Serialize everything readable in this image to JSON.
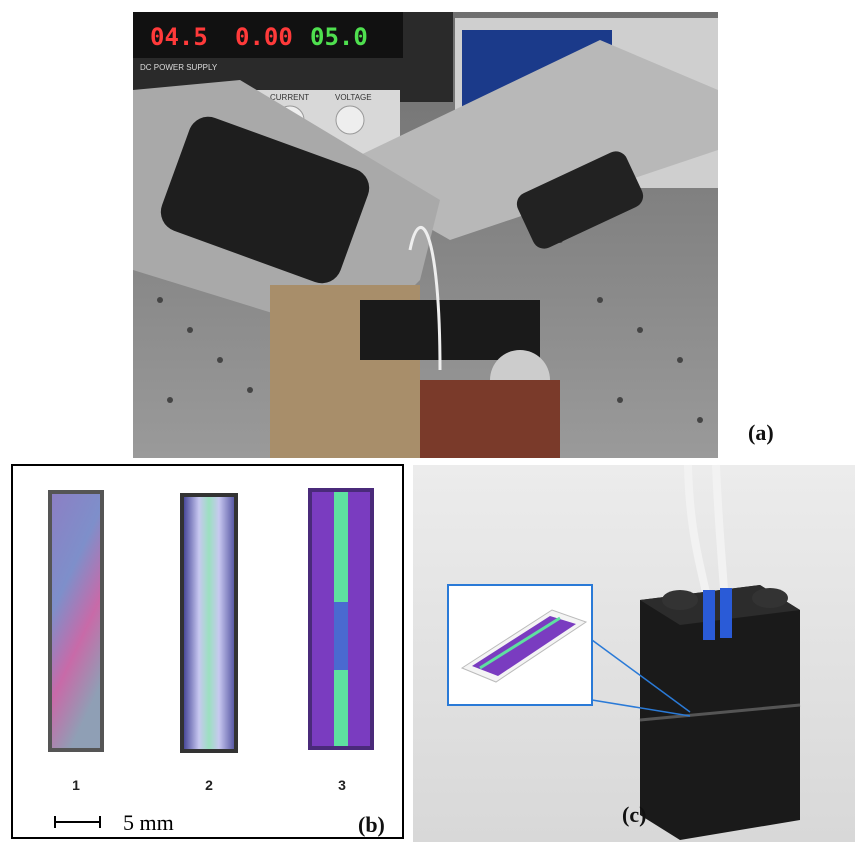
{
  "panels": {
    "a": {
      "label": "(a)",
      "display": [
        "04.5",
        "0.00",
        "05.0"
      ],
      "supply_label": "DC POWER SUPPLY",
      "knob_labels": [
        "CURRENT",
        "VOLTAGE"
      ]
    },
    "b": {
      "label": "(b)",
      "strips": [
        "1",
        "2",
        "3"
      ],
      "scale": "5 mm"
    },
    "c": {
      "label": "(c)"
    }
  }
}
